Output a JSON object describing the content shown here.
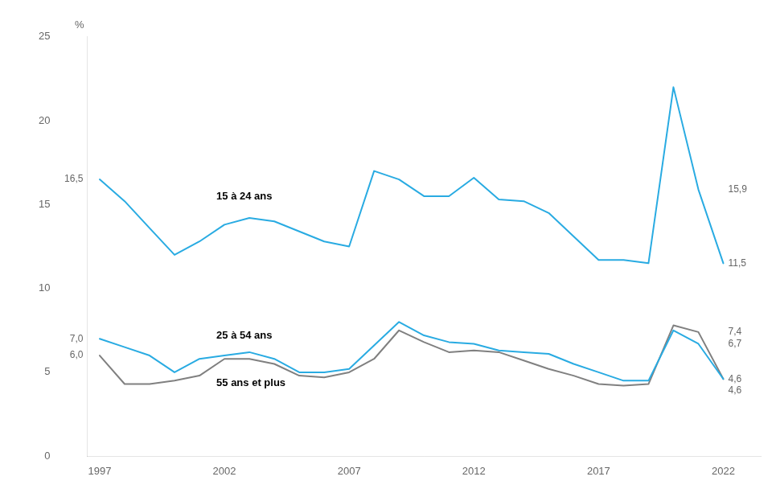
{
  "chart_data": {
    "type": "line",
    "ylabel": "%",
    "x": [
      1997,
      1998,
      1999,
      2000,
      2001,
      2002,
      2003,
      2004,
      2005,
      2006,
      2007,
      2008,
      2009,
      2010,
      2011,
      2012,
      2013,
      2014,
      2015,
      2016,
      2017,
      2018,
      2019,
      2020,
      2021,
      2022
    ],
    "xlim": [
      1996.5,
      2023.5
    ],
    "xticks": [
      1997,
      2002,
      2007,
      2012,
      2017,
      2022
    ],
    "ylim": [
      0,
      25
    ],
    "yticks": [
      0,
      5,
      10,
      15,
      20,
      25
    ],
    "grid": false,
    "data_labels": true,
    "series": [
      {
        "name": "15 à 24 ans",
        "color": "#29ABE2",
        "values": [
          16.5,
          15.2,
          13.6,
          12.0,
          12.8,
          13.8,
          14.2,
          14.0,
          13.4,
          12.8,
          12.5,
          17.0,
          16.5,
          15.5,
          15.5,
          16.6,
          15.3,
          15.2,
          14.5,
          13.1,
          11.7,
          11.7,
          11.5,
          22.0,
          15.9,
          11.5
        ],
        "value_labels": [
          "16,5",
          null,
          null,
          null,
          null,
          null,
          null,
          null,
          null,
          null,
          null,
          null,
          null,
          null,
          null,
          null,
          null,
          null,
          null,
          null,
          null,
          null,
          null,
          null,
          "15,9",
          "11,5"
        ]
      },
      {
        "name": "25 à 54 ans",
        "color": "#29ABE2",
        "values": [
          7.0,
          6.5,
          6.0,
          5.0,
          5.8,
          6.0,
          6.2,
          5.8,
          5.0,
          5.0,
          5.2,
          6.6,
          8.0,
          7.2,
          6.8,
          6.7,
          6.3,
          6.2,
          6.1,
          5.5,
          5.0,
          4.5,
          4.5,
          7.5,
          6.7,
          4.6
        ],
        "value_labels": [
          "7,0",
          null,
          null,
          null,
          null,
          null,
          null,
          null,
          null,
          null,
          null,
          null,
          null,
          null,
          null,
          null,
          null,
          null,
          null,
          null,
          null,
          null,
          null,
          null,
          "6,7",
          "4,6"
        ]
      },
      {
        "name": "55 ans et plus",
        "color": "#808080",
        "values": [
          6.0,
          4.3,
          4.3,
          4.5,
          4.8,
          5.8,
          5.8,
          5.5,
          4.8,
          4.7,
          5.0,
          5.8,
          7.5,
          6.8,
          6.2,
          6.3,
          6.2,
          5.7,
          5.2,
          4.8,
          4.3,
          4.2,
          4.3,
          7.8,
          7.4,
          4.6
        ],
        "value_labels": [
          "6,0",
          null,
          null,
          null,
          null,
          null,
          null,
          null,
          null,
          null,
          null,
          null,
          null,
          null,
          null,
          null,
          null,
          null,
          null,
          null,
          null,
          null,
          null,
          null,
          "7,4",
          "4,6"
        ]
      }
    ]
  }
}
